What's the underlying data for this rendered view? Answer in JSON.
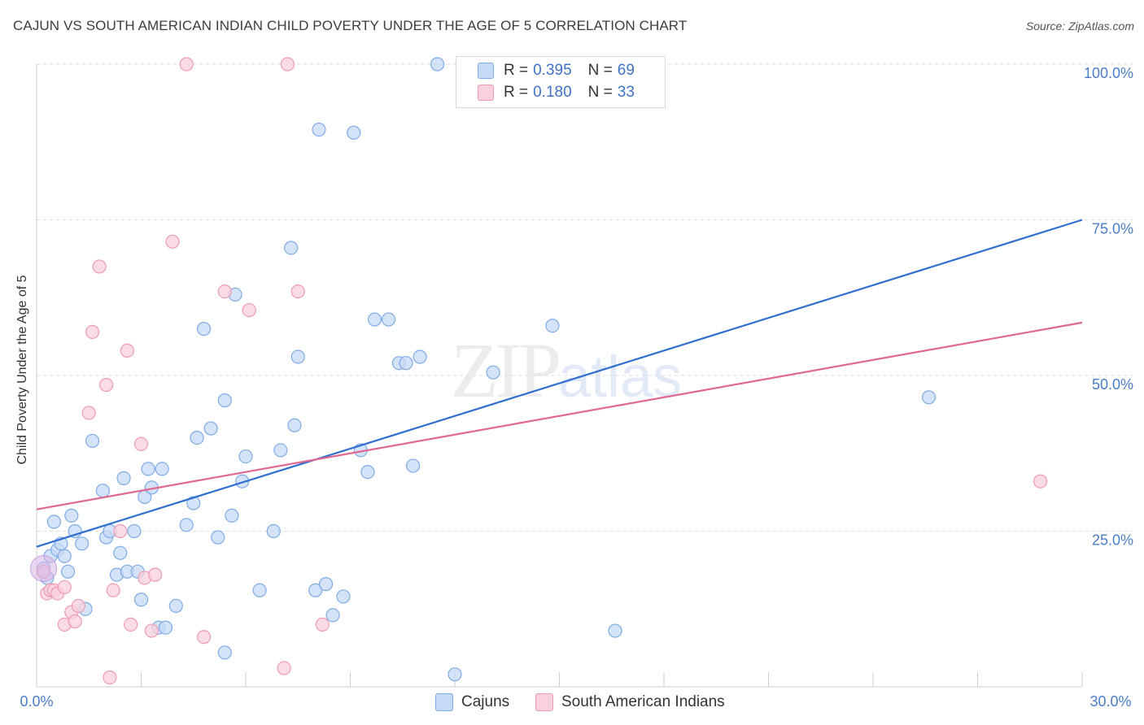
{
  "header": {
    "title": "CAJUN VS SOUTH AMERICAN INDIAN CHILD POVERTY UNDER THE AGE OF 5 CORRELATION CHART",
    "source": "Source: ZipAtlas.com"
  },
  "watermark": {
    "zip": "ZIP",
    "atlas": "atlas"
  },
  "legend": {
    "rows": [
      {
        "r_label": "R =",
        "r_value": "0.395",
        "n_label": "N =",
        "n_value": "69",
        "color": "#a9c8f0"
      },
      {
        "r_label": "R =",
        "r_value": "0.180",
        "n_label": "N =",
        "n_value": "33",
        "color": "#f6b8cc"
      }
    ]
  },
  "bottom_legend": [
    {
      "label": "Cajuns",
      "color": "#a9c8f0"
    },
    {
      "label": "South American Indians",
      "color": "#f6b8cc"
    }
  ],
  "chart_data": {
    "type": "scatter",
    "title": "CAJUN VS SOUTH AMERICAN INDIAN CHILD POVERTY UNDER THE AGE OF 5 CORRELATION CHART",
    "xlabel": "",
    "ylabel": "Child Poverty Under the Age of 5",
    "xlim": [
      0,
      30
    ],
    "ylim": [
      0,
      100
    ],
    "x_tick_labels": [
      "0.0%",
      "30.0%"
    ],
    "y_ticks": [
      25,
      50,
      75,
      100
    ],
    "y_tick_labels": [
      "25.0%",
      "50.0%",
      "75.0%",
      "100.0%"
    ],
    "grid": true,
    "legend_placement": "top-center",
    "series": [
      {
        "name": "Cajuns",
        "color": "#7fabe6",
        "fill": "#c5daf5",
        "trend": {
          "x": [
            0,
            30
          ],
          "y": [
            22.5,
            75
          ],
          "color": "#2f6fd0"
        },
        "points": [
          [
            0.2,
            18.5
          ],
          [
            0.3,
            17.5
          ],
          [
            0.4,
            21
          ],
          [
            0.5,
            26.5
          ],
          [
            0.6,
            22
          ],
          [
            0.7,
            23
          ],
          [
            0.8,
            21
          ],
          [
            0.9,
            18.5
          ],
          [
            1.0,
            27.5
          ],
          [
            1.1,
            25
          ],
          [
            1.3,
            23
          ],
          [
            1.4,
            12.5
          ],
          [
            1.6,
            39.5
          ],
          [
            1.9,
            31.5
          ],
          [
            2.0,
            24
          ],
          [
            2.1,
            25
          ],
          [
            2.3,
            18
          ],
          [
            2.4,
            21.5
          ],
          [
            2.5,
            33.5
          ],
          [
            2.6,
            18.5
          ],
          [
            2.8,
            25
          ],
          [
            2.9,
            18.5
          ],
          [
            3.0,
            14
          ],
          [
            3.1,
            30.5
          ],
          [
            3.2,
            35
          ],
          [
            3.3,
            32
          ],
          [
            3.5,
            9.5
          ],
          [
            3.6,
            35
          ],
          [
            3.7,
            9.5
          ],
          [
            4.0,
            13
          ],
          [
            4.3,
            26
          ],
          [
            4.5,
            29.5
          ],
          [
            4.6,
            40
          ],
          [
            4.8,
            57.5
          ],
          [
            5.0,
            41.5
          ],
          [
            5.2,
            24
          ],
          [
            5.4,
            5.5
          ],
          [
            5.4,
            46
          ],
          [
            5.6,
            27.5
          ],
          [
            5.7,
            63
          ],
          [
            5.9,
            33
          ],
          [
            6.0,
            37
          ],
          [
            6.4,
            15.5
          ],
          [
            6.8,
            25
          ],
          [
            7.0,
            38
          ],
          [
            7.3,
            70.5
          ],
          [
            7.4,
            42
          ],
          [
            7.5,
            53
          ],
          [
            8.0,
            15.5
          ],
          [
            8.1,
            89.5
          ],
          [
            8.3,
            16.5
          ],
          [
            8.5,
            11.5
          ],
          [
            8.8,
            14.5
          ],
          [
            9.1,
            89
          ],
          [
            9.3,
            38
          ],
          [
            9.5,
            34.5
          ],
          [
            9.7,
            59
          ],
          [
            10.1,
            59
          ],
          [
            10.4,
            52
          ],
          [
            10.6,
            52
          ],
          [
            10.8,
            35.5
          ],
          [
            11.0,
            53
          ],
          [
            11.5,
            100
          ],
          [
            12.0,
            2
          ],
          [
            13.1,
            50.5
          ],
          [
            14.8,
            58
          ],
          [
            16.6,
            9
          ],
          [
            25.6,
            46.5
          ],
          [
            0.2,
            19
          ]
        ]
      },
      {
        "name": "South American Indians",
        "color": "#ee9ab5",
        "fill": "#f9d0dd",
        "trend": {
          "x": [
            0,
            30
          ],
          "y": [
            28.5,
            58.5
          ],
          "color": "#e06791"
        },
        "points": [
          [
            0.2,
            18.5
          ],
          [
            0.3,
            15
          ],
          [
            0.4,
            15.5
          ],
          [
            0.5,
            15.5
          ],
          [
            0.6,
            15
          ],
          [
            0.8,
            16
          ],
          [
            0.8,
            10
          ],
          [
            1.0,
            12
          ],
          [
            1.1,
            10.5
          ],
          [
            1.2,
            13
          ],
          [
            1.5,
            44
          ],
          [
            1.6,
            57
          ],
          [
            1.8,
            67.5
          ],
          [
            2.0,
            48.5
          ],
          [
            2.1,
            1.5
          ],
          [
            2.2,
            15.5
          ],
          [
            2.4,
            25
          ],
          [
            2.6,
            54
          ],
          [
            2.7,
            10
          ],
          [
            3.0,
            39
          ],
          [
            3.1,
            17.5
          ],
          [
            3.3,
            9
          ],
          [
            3.4,
            18
          ],
          [
            3.9,
            71.5
          ],
          [
            4.3,
            100
          ],
          [
            4.8,
            8
          ],
          [
            5.4,
            63.5
          ],
          [
            6.1,
            60.5
          ],
          [
            7.1,
            3
          ],
          [
            7.2,
            100
          ],
          [
            7.5,
            63.5
          ],
          [
            8.2,
            10
          ],
          [
            28.8,
            33
          ]
        ]
      }
    ]
  }
}
